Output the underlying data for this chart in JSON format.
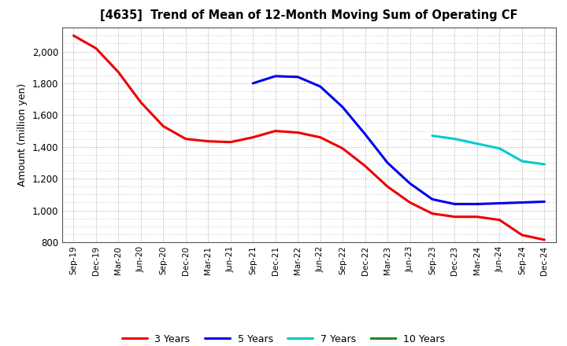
{
  "title": "[4635]  Trend of Mean of 12-Month Moving Sum of Operating CF",
  "ylabel": "Amount (million yen)",
  "ylim": [
    800,
    2150
  ],
  "yticks": [
    800,
    1000,
    1200,
    1400,
    1600,
    1800,
    2000
  ],
  "background_color": "#ffffff",
  "plot_bg_color": "#ffffff",
  "grid_color": "#999999",
  "x_labels": [
    "Sep-19",
    "Dec-19",
    "Mar-20",
    "Jun-20",
    "Sep-20",
    "Dec-20",
    "Mar-21",
    "Jun-21",
    "Sep-21",
    "Dec-21",
    "Mar-22",
    "Jun-22",
    "Sep-22",
    "Dec-22",
    "Mar-23",
    "Jun-23",
    "Sep-23",
    "Dec-23",
    "Mar-24",
    "Jun-24",
    "Sep-24",
    "Dec-24"
  ],
  "series": {
    "3 Years": {
      "color": "#ee0000",
      "data": {
        "Sep-19": 2100,
        "Dec-19": 2020,
        "Mar-20": 1870,
        "Jun-20": 1680,
        "Sep-20": 1530,
        "Dec-20": 1450,
        "Mar-21": 1435,
        "Jun-21": 1430,
        "Sep-21": 1460,
        "Dec-21": 1500,
        "Mar-22": 1490,
        "Jun-22": 1460,
        "Sep-22": 1390,
        "Dec-22": 1280,
        "Mar-23": 1150,
        "Jun-23": 1050,
        "Sep-23": 980,
        "Dec-23": 960,
        "Mar-24": 960,
        "Jun-24": 940,
        "Sep-24": 845,
        "Dec-24": 815
      }
    },
    "5 Years": {
      "color": "#0000ee",
      "data": {
        "Sep-21": 1800,
        "Dec-21": 1845,
        "Mar-22": 1840,
        "Jun-22": 1780,
        "Sep-22": 1650,
        "Dec-22": 1480,
        "Mar-23": 1300,
        "Jun-23": 1170,
        "Sep-23": 1070,
        "Dec-23": 1040,
        "Mar-24": 1040,
        "Jun-24": 1045,
        "Sep-24": 1050,
        "Dec-24": 1055
      }
    },
    "7 Years": {
      "color": "#00cccc",
      "data": {
        "Sep-23": 1470,
        "Dec-23": 1450,
        "Mar-24": 1420,
        "Jun-24": 1390,
        "Sep-24": 1310,
        "Dec-24": 1290
      }
    },
    "10 Years": {
      "color": "#228822",
      "data": {}
    }
  }
}
